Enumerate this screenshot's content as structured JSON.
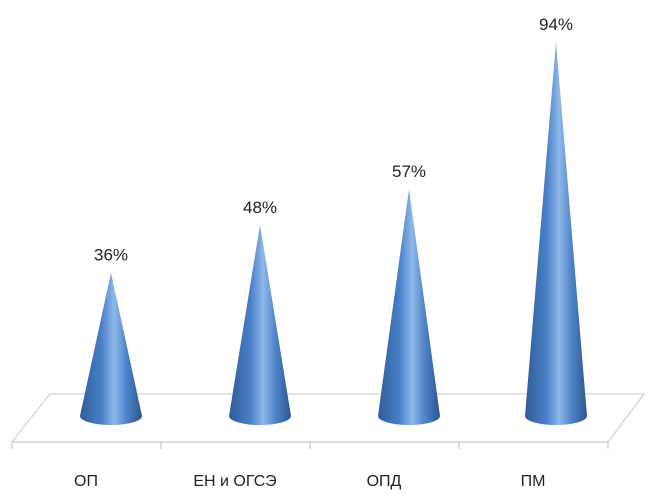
{
  "chart_data": {
    "type": "bar",
    "shape": "cone",
    "categories": [
      "ОП",
      "ЕН и ОГСЭ",
      "ОПД",
      "ПМ"
    ],
    "values": [
      36,
      48,
      57,
      94
    ],
    "data_labels": [
      "36%",
      "48%",
      "57%",
      "94%"
    ],
    "title": "",
    "xlabel": "",
    "ylabel": "",
    "ylim": [
      0,
      100
    ],
    "grid": false,
    "legend": "none",
    "color": "#4a80c7"
  }
}
